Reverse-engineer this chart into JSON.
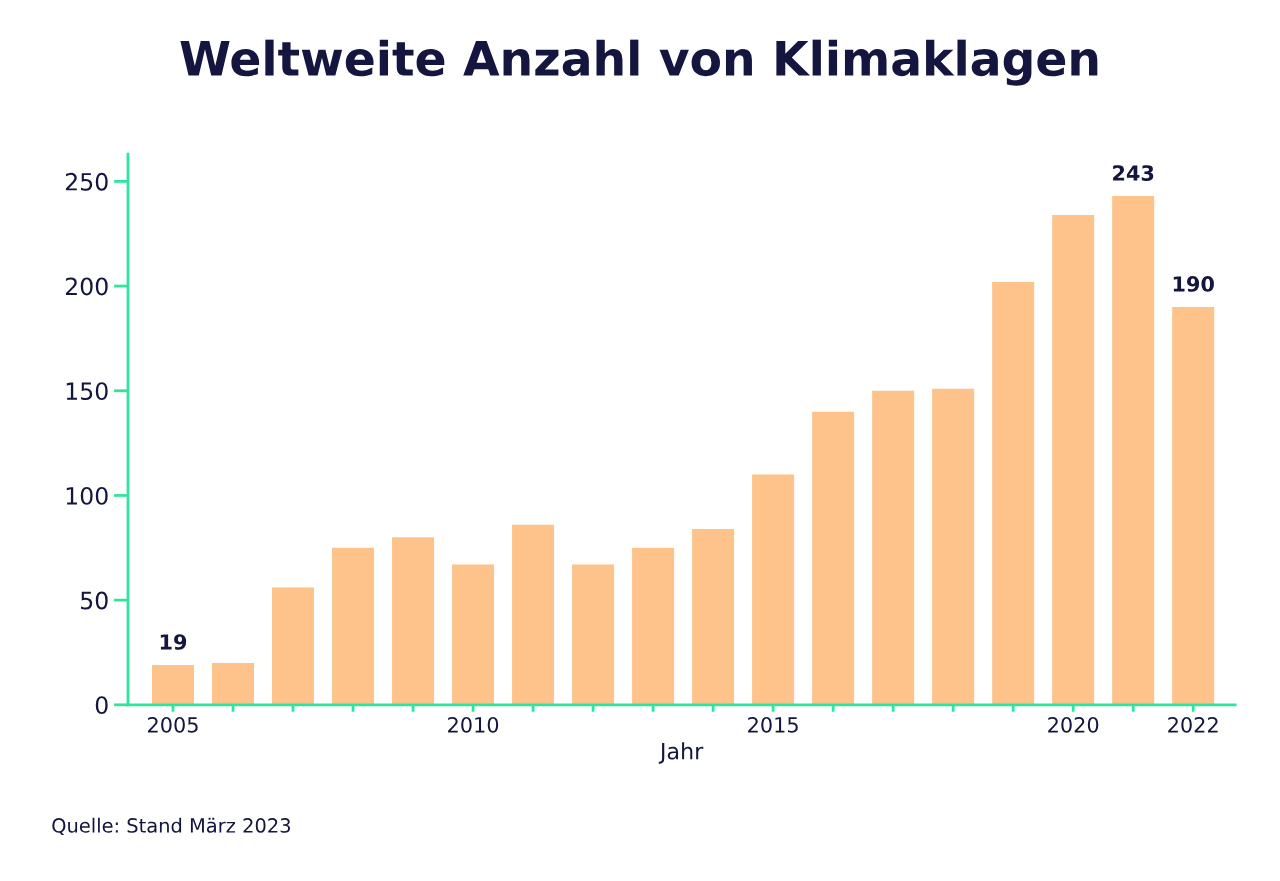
{
  "chart_data": {
    "type": "bar",
    "title": "Weltweite Anzahl von Klimaklagen",
    "xlabel": "Jahr",
    "categories": [
      "2005",
      null,
      null,
      null,
      null,
      "2010",
      null,
      null,
      null,
      null,
      "2015",
      null,
      null,
      null,
      null,
      "2020",
      null,
      "2022"
    ],
    "values": [
      19,
      20,
      56,
      75,
      80,
      67,
      86,
      67,
      75,
      84,
      110,
      140,
      150,
      151,
      202,
      234,
      243,
      190
    ],
    "value_labels": [
      "19",
      null,
      null,
      null,
      null,
      null,
      null,
      null,
      null,
      null,
      null,
      null,
      null,
      null,
      null,
      null,
      "243",
      "190"
    ],
    "color": "#fdc38a",
    "ylim": [
      0,
      263
    ],
    "yticks": [
      0,
      50,
      100,
      150,
      200,
      250
    ],
    "grid": false,
    "annotations": [
      "Quelle: Stand März 2023"
    ]
  }
}
